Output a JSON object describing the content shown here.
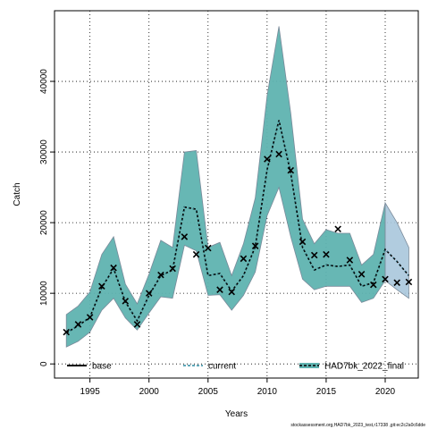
{
  "chart_data": {
    "type": "line",
    "xlabel": "Years",
    "ylabel": "Catch",
    "xlim": [
      1992.0,
      2022.8
    ],
    "ylim": [
      -2000,
      50000
    ],
    "xticks": [
      1995,
      2000,
      2005,
      2010,
      2015,
      2020
    ],
    "yticks": [
      0,
      10000,
      20000,
      30000,
      40000
    ],
    "grid": true,
    "legend_position": "bottom",
    "legend": [
      "base",
      "current",
      "HAD7bk_2022_final"
    ],
    "band_color": "#5fb3b0",
    "band_edge_color": "#7a8a9a",
    "projection_band_color": "#a9c6dc",
    "x": [
      1993,
      1994,
      1995,
      1996,
      1997,
      1998,
      1999,
      2000,
      2001,
      2002,
      2003,
      2004,
      2005,
      2006,
      2007,
      2008,
      2009,
      2010,
      2011,
      2012,
      2013,
      2014,
      2015,
      2016,
      2017,
      2018,
      2019,
      2020,
      2021,
      2022
    ],
    "median": [
      4400,
      5400,
      6600,
      10800,
      13500,
      8800,
      6100,
      9700,
      12500,
      13300,
      22200,
      21900,
      12500,
      12800,
      10300,
      12500,
      16600,
      27500,
      34500,
      27000,
      16500,
      13300,
      14000,
      13800,
      14000,
      11000,
      11500,
      16200,
      14500,
      12500
    ],
    "upper": [
      7000,
      8200,
      10200,
      15500,
      18000,
      11300,
      8500,
      12700,
      17500,
      16500,
      30000,
      30200,
      16500,
      17200,
      12500,
      17000,
      23500,
      38000,
      47800,
      35500,
      20500,
      17000,
      19000,
      18500,
      18500,
      14000,
      15500,
      22800,
      20000,
      16500
    ],
    "lower": [
      2400,
      3200,
      4500,
      7600,
      9300,
      6500,
      4800,
      7200,
      9500,
      9300,
      16800,
      16000,
      9700,
      9800,
      7600,
      9700,
      13000,
      21000,
      25000,
      18000,
      12000,
      10500,
      11000,
      11000,
      11000,
      8700,
      9300,
      11800,
      10500,
      9300
    ],
    "series": [
      {
        "name": "HAD7bk_2022_final",
        "x": [
          1993,
          1994,
          1995,
          1996,
          1997,
          1998,
          1999,
          2000,
          2001,
          2002,
          2003,
          2004,
          2005,
          2006,
          2007,
          2008,
          2009,
          2010,
          2011,
          2012,
          2013,
          2014,
          2015,
          2016,
          2017,
          2018,
          2019,
          2020,
          2021,
          2022
        ],
        "values": [
          4500,
          5600,
          6600,
          11000,
          13600,
          8900,
          5600,
          10000,
          12600,
          13500,
          18000,
          15500,
          16400,
          10500,
          10200,
          14900,
          16700,
          29000,
          29700,
          27400,
          17300,
          15400,
          15500,
          19100,
          14700,
          12700,
          11200,
          12000,
          11500,
          11600
        ]
      }
    ]
  },
  "footer": {
    "text": "stockassessment.org,HAD7bk_2023_test,r17338 ,git:ec2c2a0c6dde"
  }
}
